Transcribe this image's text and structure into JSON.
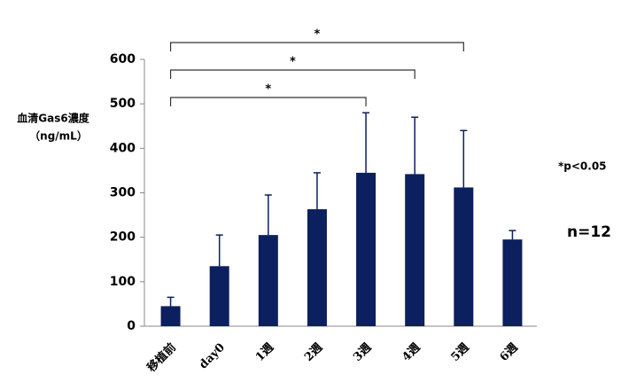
{
  "chart_data": {
    "type": "bar",
    "y_label_lines": [
      "血清Gas6濃度",
      "（ng/mL）"
    ],
    "categories": [
      "移植前",
      "day0",
      "1週",
      "2週",
      "3週",
      "4週",
      "5週",
      "6週"
    ],
    "values": [
      45,
      135,
      205,
      263,
      345,
      342,
      312,
      195
    ],
    "errors": [
      20,
      70,
      90,
      82,
      135,
      128,
      128,
      20
    ],
    "color": "#0c1f5e",
    "ylim": [
      0,
      600
    ],
    "yticks": [
      0,
      100,
      200,
      300,
      400,
      500,
      600
    ],
    "grid": false,
    "significance": [
      {
        "span": [
          "移植前",
          "3週"
        ],
        "label": "*"
      },
      {
        "span": [
          "移植前",
          "4週"
        ],
        "label": "*"
      },
      {
        "span": [
          "移植前",
          "5週"
        ],
        "label": "*"
      }
    ],
    "annotations": [
      "*p<0.05",
      "n=12"
    ]
  }
}
